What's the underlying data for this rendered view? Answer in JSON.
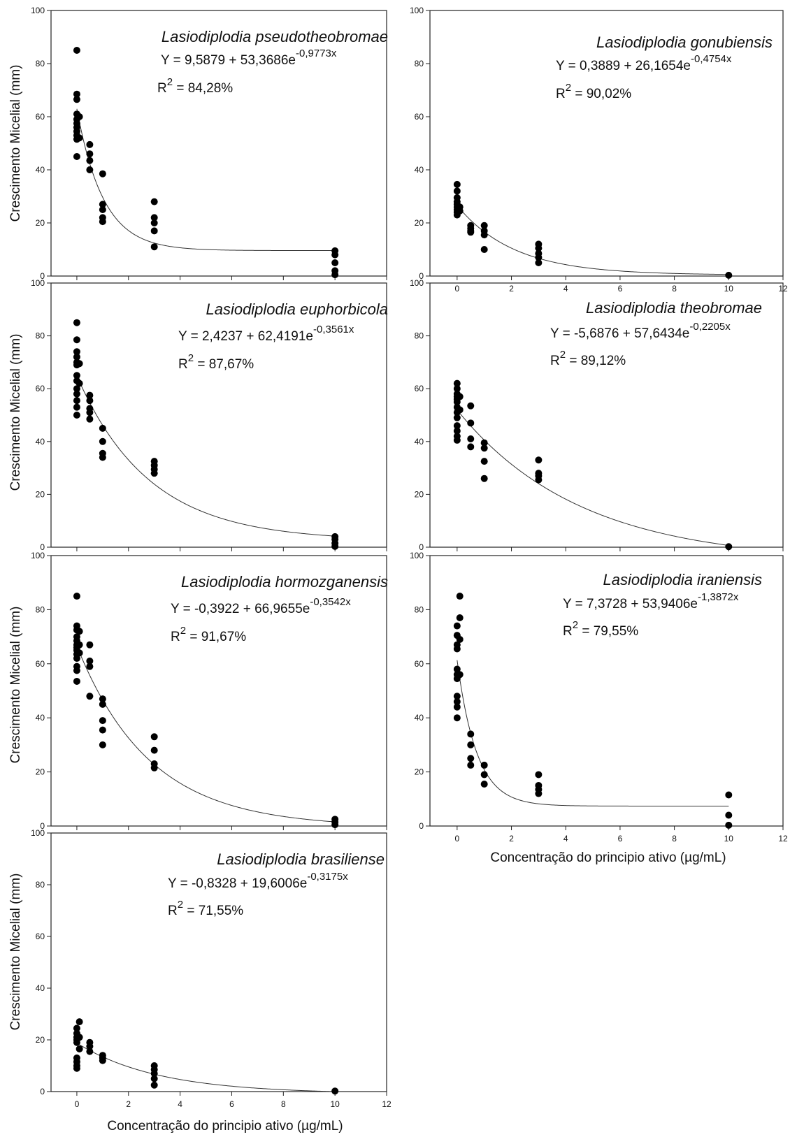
{
  "figure": {
    "xlabel": "Concentração do principio ativo (µg/mL)",
    "ylabel": "Crescimento Micelial (mm)"
  },
  "chart_data": [
    {
      "type": "scatter",
      "species": "Lasiodiplodia pseudotheobromae",
      "equation": {
        "prefix": "Y = 9,5879 + 53,3686e",
        "exponent": "-0,9773x"
      },
      "r2": {
        "label": "R",
        "sup": "2",
        "value": " = 84,28%"
      },
      "fit": {
        "a": 9.5879,
        "b": 53.3686,
        "k": 0.9773
      },
      "xlim": [
        -1,
        12
      ],
      "ylim": [
        0,
        100
      ],
      "x_ticks": [
        0,
        2,
        4,
        6,
        8,
        10,
        12
      ],
      "y_ticks": [
        0,
        20,
        40,
        60,
        80,
        100
      ],
      "points": [
        [
          0,
          85
        ],
        [
          0,
          68.5
        ],
        [
          0,
          66.5
        ],
        [
          0,
          61
        ],
        [
          0,
          59
        ],
        [
          0,
          57.5
        ],
        [
          0,
          56
        ],
        [
          0,
          54.5
        ],
        [
          0,
          53
        ],
        [
          0,
          51.5
        ],
        [
          0,
          45
        ],
        [
          0.1,
          60
        ],
        [
          0.1,
          52
        ],
        [
          0.5,
          49.5
        ],
        [
          0.5,
          46
        ],
        [
          0.5,
          43.5
        ],
        [
          0.5,
          40
        ],
        [
          1,
          38.5
        ],
        [
          1,
          27
        ],
        [
          1,
          25
        ],
        [
          1,
          22
        ],
        [
          1,
          20.5
        ],
        [
          3,
          28
        ],
        [
          3,
          22
        ],
        [
          3,
          20
        ],
        [
          3,
          17
        ],
        [
          3,
          11
        ],
        [
          10,
          9.5
        ],
        [
          10,
          8
        ],
        [
          10,
          5
        ],
        [
          10,
          2
        ],
        [
          10,
          0.5
        ]
      ]
    },
    {
      "type": "scatter",
      "species": "Lasiodiplodia gonubiensis",
      "equation": {
        "prefix": "Y = 0,3889 + 26,1654e",
        "exponent": "-0,4754x"
      },
      "r2": {
        "label": "R",
        "sup": "2",
        "value": " = 90,02%"
      },
      "fit": {
        "a": 0.3889,
        "b": 26.1654,
        "k": 0.4754
      },
      "xlim": [
        -1,
        12
      ],
      "ylim": [
        0,
        100
      ],
      "x_ticks": [
        0,
        2,
        4,
        6,
        8,
        10,
        12
      ],
      "y_ticks": [
        0,
        20,
        40,
        60,
        80,
        100
      ],
      "points": [
        [
          0,
          34.5
        ],
        [
          0,
          32
        ],
        [
          0,
          29.5
        ],
        [
          0,
          28
        ],
        [
          0,
          27
        ],
        [
          0,
          26
        ],
        [
          0,
          25
        ],
        [
          0,
          24
        ],
        [
          0,
          23
        ],
        [
          0.1,
          26
        ],
        [
          0.1,
          24.5
        ],
        [
          0.5,
          19
        ],
        [
          0.5,
          18
        ],
        [
          0.5,
          17
        ],
        [
          0.5,
          16.5
        ],
        [
          1,
          19
        ],
        [
          1,
          17
        ],
        [
          1,
          15.5
        ],
        [
          1,
          10
        ],
        [
          3,
          12
        ],
        [
          3,
          10.5
        ],
        [
          3,
          8.5
        ],
        [
          3,
          7
        ],
        [
          3,
          5
        ],
        [
          10,
          0.3
        ]
      ]
    },
    {
      "type": "scatter",
      "species": "Lasiodiplodia euphorbicola",
      "equation": {
        "prefix": "Y = 2,4237 + 62,4191e",
        "exponent": "-0,3561x"
      },
      "r2": {
        "label": "R",
        "sup": "2",
        "value": " = 87,67%"
      },
      "fit": {
        "a": 2.4237,
        "b": 62.4191,
        "k": 0.3561
      },
      "xlim": [
        -1,
        12
      ],
      "ylim": [
        0,
        100
      ],
      "x_ticks": [
        0,
        2,
        4,
        6,
        8,
        10,
        12
      ],
      "y_ticks": [
        0,
        20,
        40,
        60,
        80,
        100
      ],
      "points": [
        [
          0,
          85
        ],
        [
          0,
          78.5
        ],
        [
          0,
          74
        ],
        [
          0,
          72
        ],
        [
          0,
          70
        ],
        [
          0,
          69
        ],
        [
          0,
          65
        ],
        [
          0,
          63
        ],
        [
          0,
          60
        ],
        [
          0,
          58
        ],
        [
          0,
          55.5
        ],
        [
          0,
          53
        ],
        [
          0,
          50
        ],
        [
          0.1,
          69.5
        ],
        [
          0.1,
          62
        ],
        [
          0.5,
          57.5
        ],
        [
          0.5,
          55.5
        ],
        [
          0.5,
          52.5
        ],
        [
          0.5,
          51
        ],
        [
          0.5,
          48.5
        ],
        [
          1,
          45
        ],
        [
          1,
          40
        ],
        [
          1,
          35.5
        ],
        [
          1,
          34
        ],
        [
          3,
          32.5
        ],
        [
          3,
          31
        ],
        [
          3,
          29.5
        ],
        [
          3,
          28
        ],
        [
          10,
          4
        ],
        [
          10,
          3
        ],
        [
          10,
          1.5
        ],
        [
          10,
          0.3
        ]
      ]
    },
    {
      "type": "scatter",
      "species": "Lasiodiplodia theobromae",
      "equation": {
        "prefix": "Y = -5,6876 + 57,6434e",
        "exponent": "-0,2205x"
      },
      "r2": {
        "label": "R",
        "sup": "2",
        "value": " = 89,12%"
      },
      "fit": {
        "a": -5.6876,
        "b": 57.6434,
        "k": 0.2205
      },
      "xlim": [
        -1,
        12
      ],
      "ylim": [
        0,
        100
      ],
      "x_ticks": [
        0,
        2,
        4,
        6,
        8,
        10,
        12
      ],
      "y_ticks": [
        0,
        20,
        40,
        60,
        80,
        100
      ],
      "points": [
        [
          0,
          62
        ],
        [
          0,
          60
        ],
        [
          0,
          58
        ],
        [
          0,
          57
        ],
        [
          0,
          56
        ],
        [
          0,
          55
        ],
        [
          0,
          53
        ],
        [
          0,
          51
        ],
        [
          0,
          49
        ],
        [
          0,
          46
        ],
        [
          0,
          44
        ],
        [
          0,
          42
        ],
        [
          0,
          40.5
        ],
        [
          0.1,
          57
        ],
        [
          0.1,
          52
        ],
        [
          0.5,
          53.5
        ],
        [
          0.5,
          47
        ],
        [
          0.5,
          41
        ],
        [
          0.5,
          38
        ],
        [
          1,
          39.5
        ],
        [
          1,
          37.5
        ],
        [
          1,
          32.5
        ],
        [
          1,
          26
        ],
        [
          3,
          33
        ],
        [
          3,
          28
        ],
        [
          3,
          27
        ],
        [
          3,
          25.5
        ],
        [
          10,
          0.2
        ]
      ]
    },
    {
      "type": "scatter",
      "species": "Lasiodiplodia hormozganensis",
      "equation": {
        "prefix": "Y = -0,3922 + 66,9655e",
        "exponent": "-0,3542x"
      },
      "r2": {
        "label": "R",
        "sup": "2",
        "value": " = 91,67%"
      },
      "fit": {
        "a": -0.3922,
        "b": 66.9655,
        "k": 0.3542
      },
      "xlim": [
        -1,
        12
      ],
      "ylim": [
        0,
        100
      ],
      "x_ticks": [
        0,
        2,
        4,
        6,
        8,
        10,
        12
      ],
      "y_ticks": [
        0,
        20,
        40,
        60,
        80,
        100
      ],
      "points": [
        [
          0,
          85
        ],
        [
          0,
          74
        ],
        [
          0,
          72.5
        ],
        [
          0,
          70
        ],
        [
          0,
          68.5
        ],
        [
          0,
          67
        ],
        [
          0,
          66
        ],
        [
          0,
          65
        ],
        [
          0,
          63.5
        ],
        [
          0,
          62
        ],
        [
          0,
          59
        ],
        [
          0,
          57.5
        ],
        [
          0,
          53.5
        ],
        [
          0.1,
          72
        ],
        [
          0.1,
          67
        ],
        [
          0.1,
          64
        ],
        [
          0.5,
          67
        ],
        [
          0.5,
          61
        ],
        [
          0.5,
          59
        ],
        [
          0.5,
          48
        ],
        [
          1,
          47
        ],
        [
          1,
          45
        ],
        [
          1,
          39
        ],
        [
          1,
          35.5
        ],
        [
          1,
          30
        ],
        [
          3,
          33
        ],
        [
          3,
          28
        ],
        [
          3,
          23
        ],
        [
          3,
          21.5
        ],
        [
          10,
          2.5
        ],
        [
          10,
          1.5
        ],
        [
          10,
          0.5
        ]
      ]
    },
    {
      "type": "scatter",
      "species": "Lasiodiplodia iraniensis",
      "equation": {
        "prefix": "Y = 7,3728 + 53,9406e",
        "exponent": "-1,3872x"
      },
      "r2": {
        "label": "R",
        "sup": "2",
        "value": " = 79,55%"
      },
      "fit": {
        "a": 7.3728,
        "b": 53.9406,
        "k": 1.3872
      },
      "xlim": [
        -1,
        12
      ],
      "ylim": [
        0,
        100
      ],
      "x_ticks": [
        0,
        2,
        4,
        6,
        8,
        10,
        12
      ],
      "y_ticks": [
        0,
        20,
        40,
        60,
        80,
        100
      ],
      "points": [
        [
          0,
          74
        ],
        [
          0,
          70.5
        ],
        [
          0,
          67
        ],
        [
          0,
          65.5
        ],
        [
          0,
          58
        ],
        [
          0,
          56
        ],
        [
          0,
          54.5
        ],
        [
          0,
          48
        ],
        [
          0,
          46
        ],
        [
          0,
          44
        ],
        [
          0,
          40
        ],
        [
          0.1,
          85
        ],
        [
          0.1,
          77
        ],
        [
          0.1,
          69
        ],
        [
          0.1,
          56
        ],
        [
          0.5,
          34
        ],
        [
          0.5,
          30
        ],
        [
          0.5,
          25
        ],
        [
          0.5,
          22.5
        ],
        [
          1,
          22.5
        ],
        [
          1,
          19
        ],
        [
          1,
          15.5
        ],
        [
          3,
          19
        ],
        [
          3,
          15
        ],
        [
          3,
          13.5
        ],
        [
          3,
          12
        ],
        [
          10,
          11.5
        ],
        [
          10,
          4
        ],
        [
          10,
          0.3
        ]
      ]
    },
    {
      "type": "scatter",
      "species": "Lasiodiplodia brasiliense",
      "equation": {
        "prefix": "Y = -0,8328 + 19,6006e",
        "exponent": "-0,3175x"
      },
      "r2": {
        "label": "R",
        "sup": "2",
        "value": " = 71,55%"
      },
      "fit": {
        "a": -0.8328,
        "b": 19.6006,
        "k": 0.3175
      },
      "xlim": [
        -1,
        12
      ],
      "ylim": [
        0,
        100
      ],
      "x_ticks": [
        0,
        2,
        4,
        6,
        8,
        10,
        12
      ],
      "y_ticks": [
        0,
        20,
        40,
        60,
        80,
        100
      ],
      "points": [
        [
          0,
          24.5
        ],
        [
          0,
          22.5
        ],
        [
          0,
          21
        ],
        [
          0,
          20
        ],
        [
          0,
          19
        ],
        [
          0,
          13
        ],
        [
          0,
          11.5
        ],
        [
          0,
          10
        ],
        [
          0,
          9
        ],
        [
          0.1,
          27
        ],
        [
          0.1,
          21
        ],
        [
          0.1,
          16.5
        ],
        [
          0.5,
          19
        ],
        [
          0.5,
          17.5
        ],
        [
          0.5,
          15.5
        ],
        [
          1,
          14
        ],
        [
          1,
          13
        ],
        [
          1,
          12
        ],
        [
          3,
          10
        ],
        [
          3,
          8.5
        ],
        [
          3,
          7
        ],
        [
          3,
          5
        ],
        [
          3,
          2.5
        ],
        [
          10,
          0.2
        ]
      ]
    }
  ]
}
